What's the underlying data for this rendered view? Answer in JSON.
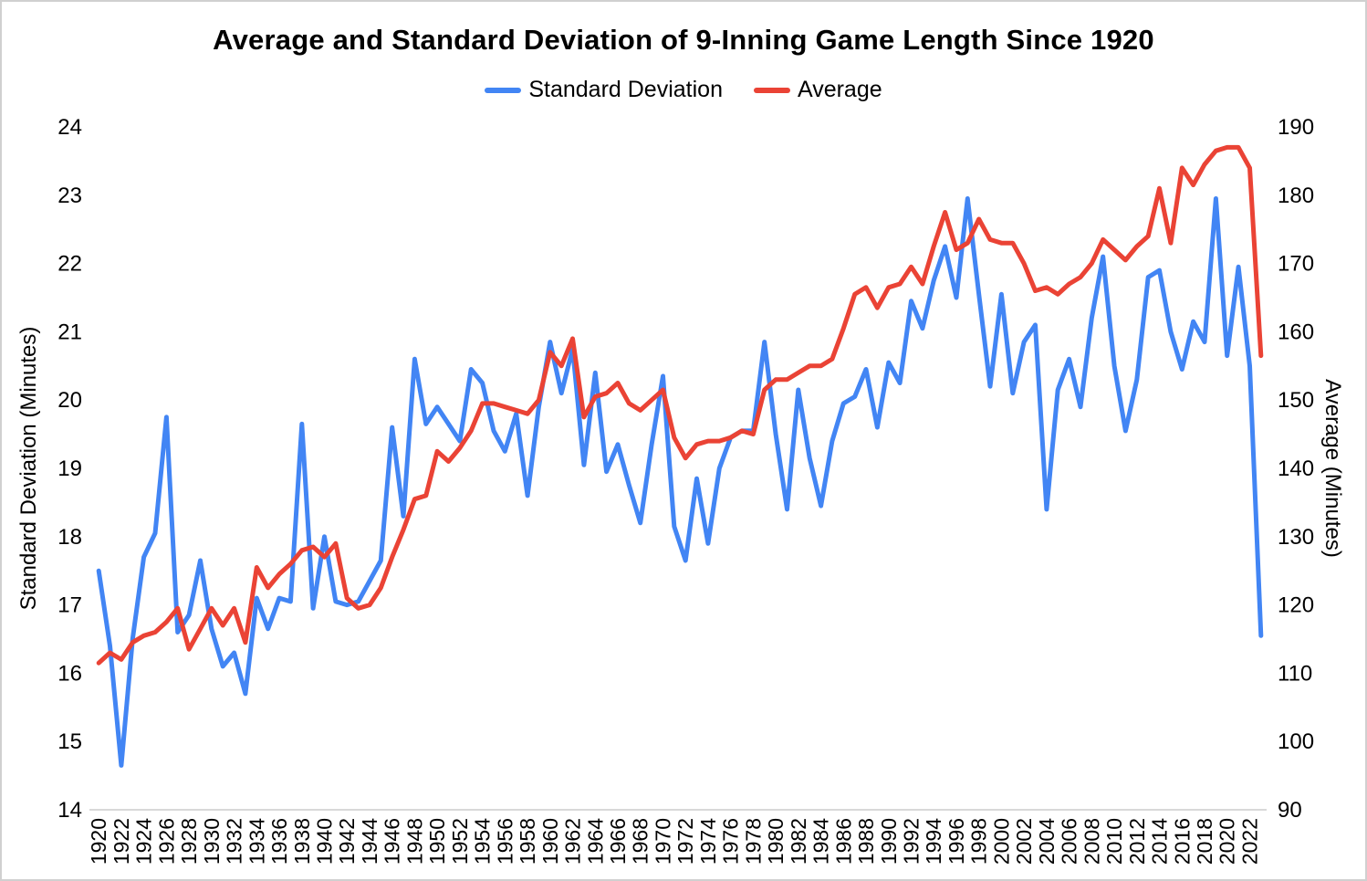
{
  "title": "Average and Standard Deviation of 9-Inning Game Length Since 1920",
  "legend": [
    {
      "label": "Standard Deviation",
      "color": "#4285F4"
    },
    {
      "label": "Average",
      "color": "#EA4335"
    }
  ],
  "left_axis": {
    "title": "Standard Deviation (Minutes)",
    "ticks": [
      24,
      23,
      22,
      21,
      20,
      19,
      18,
      17,
      16,
      15,
      14
    ],
    "range": [
      14,
      24
    ]
  },
  "right_axis": {
    "title": "Average (Minutes)",
    "ticks": [
      190,
      180,
      170,
      160,
      150,
      140,
      130,
      120,
      110,
      100,
      90
    ],
    "range": [
      90,
      190
    ]
  },
  "x_axis": {
    "tick_years": [
      1920,
      1922,
      1924,
      1926,
      1928,
      1930,
      1932,
      1934,
      1936,
      1938,
      1940,
      1942,
      1944,
      1946,
      1948,
      1950,
      1952,
      1954,
      1956,
      1958,
      1960,
      1962,
      1964,
      1966,
      1968,
      1970,
      1972,
      1974,
      1976,
      1978,
      1980,
      1982,
      1984,
      1986,
      1988,
      1990,
      1992,
      1994,
      1996,
      1998,
      2000,
      2002,
      2004,
      2006,
      2008,
      2010,
      2012,
      2014,
      2016,
      2018,
      2020,
      2022
    ]
  },
  "chart_data": {
    "type": "line",
    "title": "Average and Standard Deviation of 9-Inning Game Length Since 1920",
    "grid": false,
    "legend_position": "top",
    "ylim_left": [
      14,
      24
    ],
    "ylim_right": [
      90,
      190
    ],
    "x": [
      1920,
      1921,
      1922,
      1923,
      1924,
      1925,
      1926,
      1927,
      1928,
      1929,
      1930,
      1931,
      1932,
      1933,
      1934,
      1935,
      1936,
      1937,
      1938,
      1939,
      1940,
      1941,
      1942,
      1943,
      1944,
      1945,
      1946,
      1947,
      1948,
      1949,
      1950,
      1951,
      1952,
      1953,
      1954,
      1955,
      1956,
      1957,
      1958,
      1959,
      1960,
      1961,
      1962,
      1963,
      1964,
      1965,
      1966,
      1967,
      1968,
      1969,
      1970,
      1971,
      1972,
      1973,
      1974,
      1975,
      1976,
      1977,
      1978,
      1979,
      1980,
      1981,
      1982,
      1983,
      1984,
      1985,
      1986,
      1987,
      1988,
      1989,
      1990,
      1991,
      1992,
      1993,
      1994,
      1995,
      1996,
      1997,
      1998,
      1999,
      2000,
      2001,
      2002,
      2003,
      2004,
      2005,
      2006,
      2007,
      2008,
      2009,
      2010,
      2011,
      2012,
      2013,
      2014,
      2015,
      2016,
      2017,
      2018,
      2019,
      2020,
      2021,
      2022,
      2023
    ],
    "series": [
      {
        "name": "Standard Deviation",
        "axis": "left",
        "color": "#4285F4",
        "values": [
          17.5,
          16.4,
          14.65,
          16.5,
          17.7,
          18.05,
          19.75,
          16.6,
          16.85,
          17.65,
          16.65,
          16.1,
          16.3,
          15.7,
          17.1,
          16.65,
          17.1,
          17.05,
          19.65,
          16.95,
          18.0,
          17.05,
          17.0,
          17.05,
          17.35,
          17.65,
          19.6,
          18.3,
          20.6,
          19.65,
          19.9,
          19.65,
          19.4,
          20.45,
          20.25,
          19.55,
          19.25,
          19.8,
          18.6,
          19.9,
          20.85,
          20.1,
          20.75,
          19.05,
          20.4,
          18.95,
          19.35,
          18.75,
          18.2,
          19.35,
          20.35,
          18.15,
          17.65,
          18.85,
          17.9,
          19.0,
          19.45,
          19.55,
          19.55,
          20.85,
          19.5,
          18.4,
          20.15,
          19.15,
          18.45,
          19.4,
          19.95,
          20.05,
          20.45,
          19.6,
          20.55,
          20.25,
          21.45,
          21.05,
          21.75,
          22.25,
          21.5,
          22.95,
          21.55,
          20.2,
          21.55,
          20.1,
          20.85,
          21.1,
          18.4,
          20.15,
          20.6,
          19.9,
          21.2,
          22.1,
          20.5,
          19.55,
          20.3,
          21.8,
          21.9,
          21.0,
          20.45,
          21.15,
          20.85,
          22.95,
          20.65,
          21.95,
          20.5,
          16.55
        ]
      },
      {
        "name": "Average",
        "axis": "right",
        "color": "#EA4335",
        "values": [
          111.5,
          113,
          112,
          114.5,
          115.5,
          116,
          117.5,
          119.5,
          113.5,
          116.5,
          119.5,
          117,
          119.5,
          114.5,
          125.5,
          122.5,
          124.5,
          126,
          128,
          128.5,
          127,
          129,
          121,
          119.5,
          120,
          122.5,
          127,
          131,
          135.5,
          136,
          142.5,
          141,
          143,
          145.5,
          149.5,
          149.5,
          149,
          148.5,
          148,
          150,
          157,
          155,
          159,
          147.5,
          150.5,
          151,
          152.5,
          149.5,
          148.5,
          150,
          151.5,
          144.5,
          141.5,
          143.5,
          144,
          144,
          144.5,
          145.5,
          145,
          151.5,
          153,
          153,
          154,
          155,
          155,
          156,
          160.5,
          165.5,
          166.5,
          163.5,
          166.5,
          167,
          169.5,
          167,
          172.5,
          177.5,
          172,
          173,
          176.5,
          173.5,
          173,
          173,
          170,
          166,
          166.5,
          165.5,
          167,
          168,
          170,
          173.5,
          172,
          170.5,
          172.5,
          174,
          181,
          173,
          184,
          181.5,
          184.5,
          186.5,
          187,
          187,
          184,
          156.5
        ]
      }
    ]
  }
}
